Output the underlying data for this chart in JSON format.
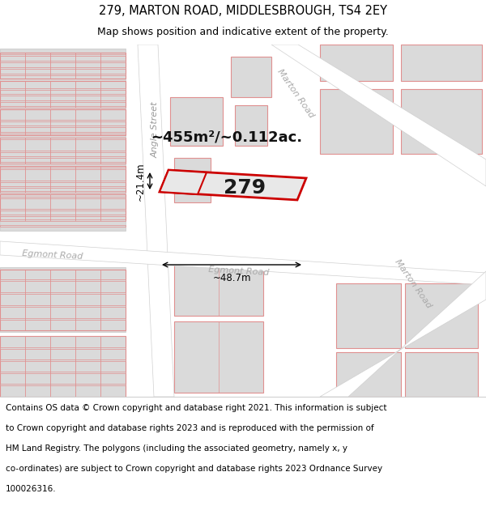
{
  "title_line1": "279, MARTON ROAD, MIDDLESBROUGH, TS4 2EY",
  "title_line2": "Map shows position and indicative extent of the property.",
  "footer_lines": [
    "Contains OS data © Crown copyright and database right 2021. This information is subject",
    "to Crown copyright and database rights 2023 and is reproduced with the permission of",
    "HM Land Registry. The polygons (including the associated geometry, namely x, y",
    "co-ordinates) are subject to Crown copyright and database rights 2023 Ordnance Survey",
    "100026316."
  ],
  "map_bg": "#efefef",
  "road_color": "#ffffff",
  "block_fill": "#dadada",
  "block_stroke": "#cccccc",
  "cad_color": "#e09090",
  "highlight_fill": "#e8e8e8",
  "highlight_stroke": "#cc0000",
  "highlight_label": "279",
  "area_text": "~455m²/~0.112ac.",
  "dim_width": "~48.7m",
  "dim_height": "~21.4m",
  "label_marton": "Marton Road",
  "label_angle": "Angle Street",
  "label_egmont": "Egmont Road",
  "label_egmont2": "Egmont Road",
  "title_fs": 10.5,
  "sub_fs": 9,
  "footer_fs": 7.5,
  "area_fs": 13,
  "label_fs": 8,
  "num_fs": 18
}
